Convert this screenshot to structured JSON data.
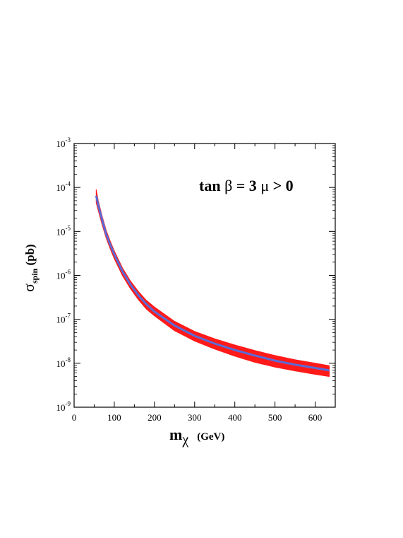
{
  "chart_data": {
    "type": "area",
    "title": "",
    "annotation": {
      "tan": "tan ",
      "beta": "β",
      "eq3": " = 3  ",
      "mu": "μ",
      "gt0": " > 0"
    },
    "xlabel": {
      "main": "m",
      "sub": "χ",
      "unit": "(GeV)"
    },
    "ylabel": {
      "main": "σ",
      "sub": "spin",
      "unit": " (pb)"
    },
    "xlim": [
      0,
      650
    ],
    "ylim": [
      1e-09,
      0.001
    ],
    "yscale": "log",
    "x_ticks": [
      "0",
      "100",
      "200",
      "300",
      "400",
      "500",
      "600"
    ],
    "y_ticks": [
      {
        "base": "10",
        "exp": "-9"
      },
      {
        "base": "10",
        "exp": "-8"
      },
      {
        "base": "10",
        "exp": "-7"
      },
      {
        "base": "10",
        "exp": "-6"
      },
      {
        "base": "10",
        "exp": "-5"
      },
      {
        "base": "10",
        "exp": "-4"
      },
      {
        "base": "10",
        "exp": "-3"
      }
    ],
    "series": [
      {
        "kind": "band",
        "color": "#ff1a1a",
        "x": [
          55,
          60,
          70,
          80,
          90,
          100,
          120,
          140,
          160,
          180,
          200,
          250,
          300,
          350,
          400,
          450,
          500,
          550,
          600,
          635
        ],
        "y_low": [
          4.5e-05,
          3e-05,
          1.4e-05,
          7e-06,
          4e-06,
          2.4e-06,
          1e-06,
          5e-07,
          2.8e-07,
          1.7e-07,
          1.2e-07,
          5.5e-08,
          3.2e-08,
          2.1e-08,
          1.45e-08,
          1.05e-08,
          8.2e-09,
          6.7e-09,
          5.6e-09,
          5e-09
        ],
        "y_high": [
          9e-05,
          5e-05,
          2.2e-05,
          1.05e-05,
          6e-06,
          3.6e-06,
          1.5e-06,
          7.5e-07,
          4.3e-07,
          2.7e-07,
          1.9e-07,
          9e-08,
          5.3e-08,
          3.6e-08,
          2.6e-08,
          1.95e-08,
          1.5e-08,
          1.2e-08,
          1e-08,
          8.8e-09
        ]
      },
      {
        "kind": "line",
        "color": "#5b6bd6",
        "x": [
          55,
          60,
          70,
          80,
          90,
          100,
          120,
          140,
          160,
          180,
          200,
          250,
          300,
          350,
          400,
          450,
          500,
          550,
          600,
          635
        ],
        "y": [
          6.5e-05,
          4e-05,
          1.8e-05,
          8.6e-06,
          5e-06,
          3e-06,
          1.25e-06,
          6.2e-07,
          3.5e-07,
          2.2e-07,
          1.5e-07,
          7.2e-08,
          4.2e-08,
          2.8e-08,
          2e-08,
          1.5e-08,
          1.15e-08,
          9.3e-09,
          7.8e-09,
          6.9e-09
        ]
      }
    ]
  }
}
